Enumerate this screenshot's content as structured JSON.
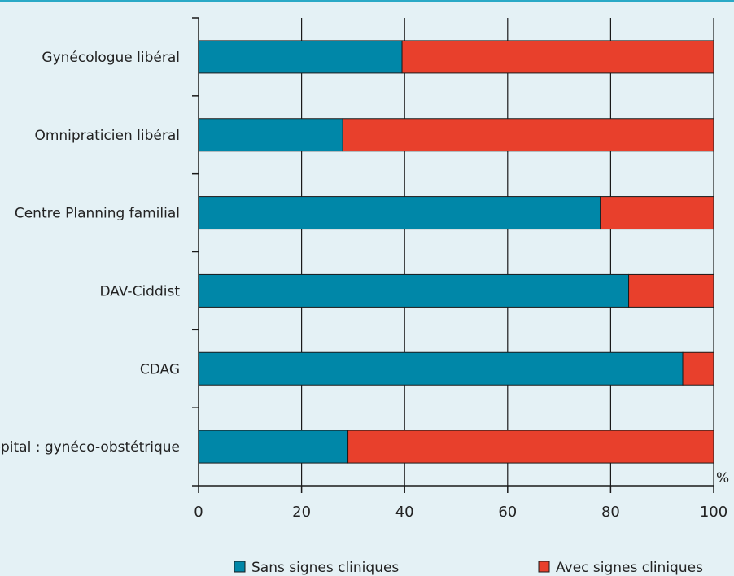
{
  "chart_data": {
    "type": "bar",
    "stacked": true,
    "orientation": "horizontal",
    "categories": [
      "Gynécologue libéral",
      "Omnipraticien libéral",
      "Centre Planning familial",
      "DAV-Ciddist",
      "CDAG",
      "Hôpital : gynéco-obstétrique"
    ],
    "series": [
      {
        "name": "Sans signes cliniques",
        "values": [
          39.5,
          28,
          78,
          83.5,
          94,
          29
        ],
        "color": "#0087a8"
      },
      {
        "name": "Avec signes cliniques",
        "values": [
          60.5,
          72,
          22,
          16.5,
          6,
          71
        ],
        "color": "#e8402c"
      }
    ],
    "xlim": [
      0,
      100
    ],
    "xticks": [
      "0",
      "20",
      "40",
      "60",
      "80",
      "100"
    ],
    "unit": "%",
    "grid": true,
    "legend_position": "bottom"
  }
}
